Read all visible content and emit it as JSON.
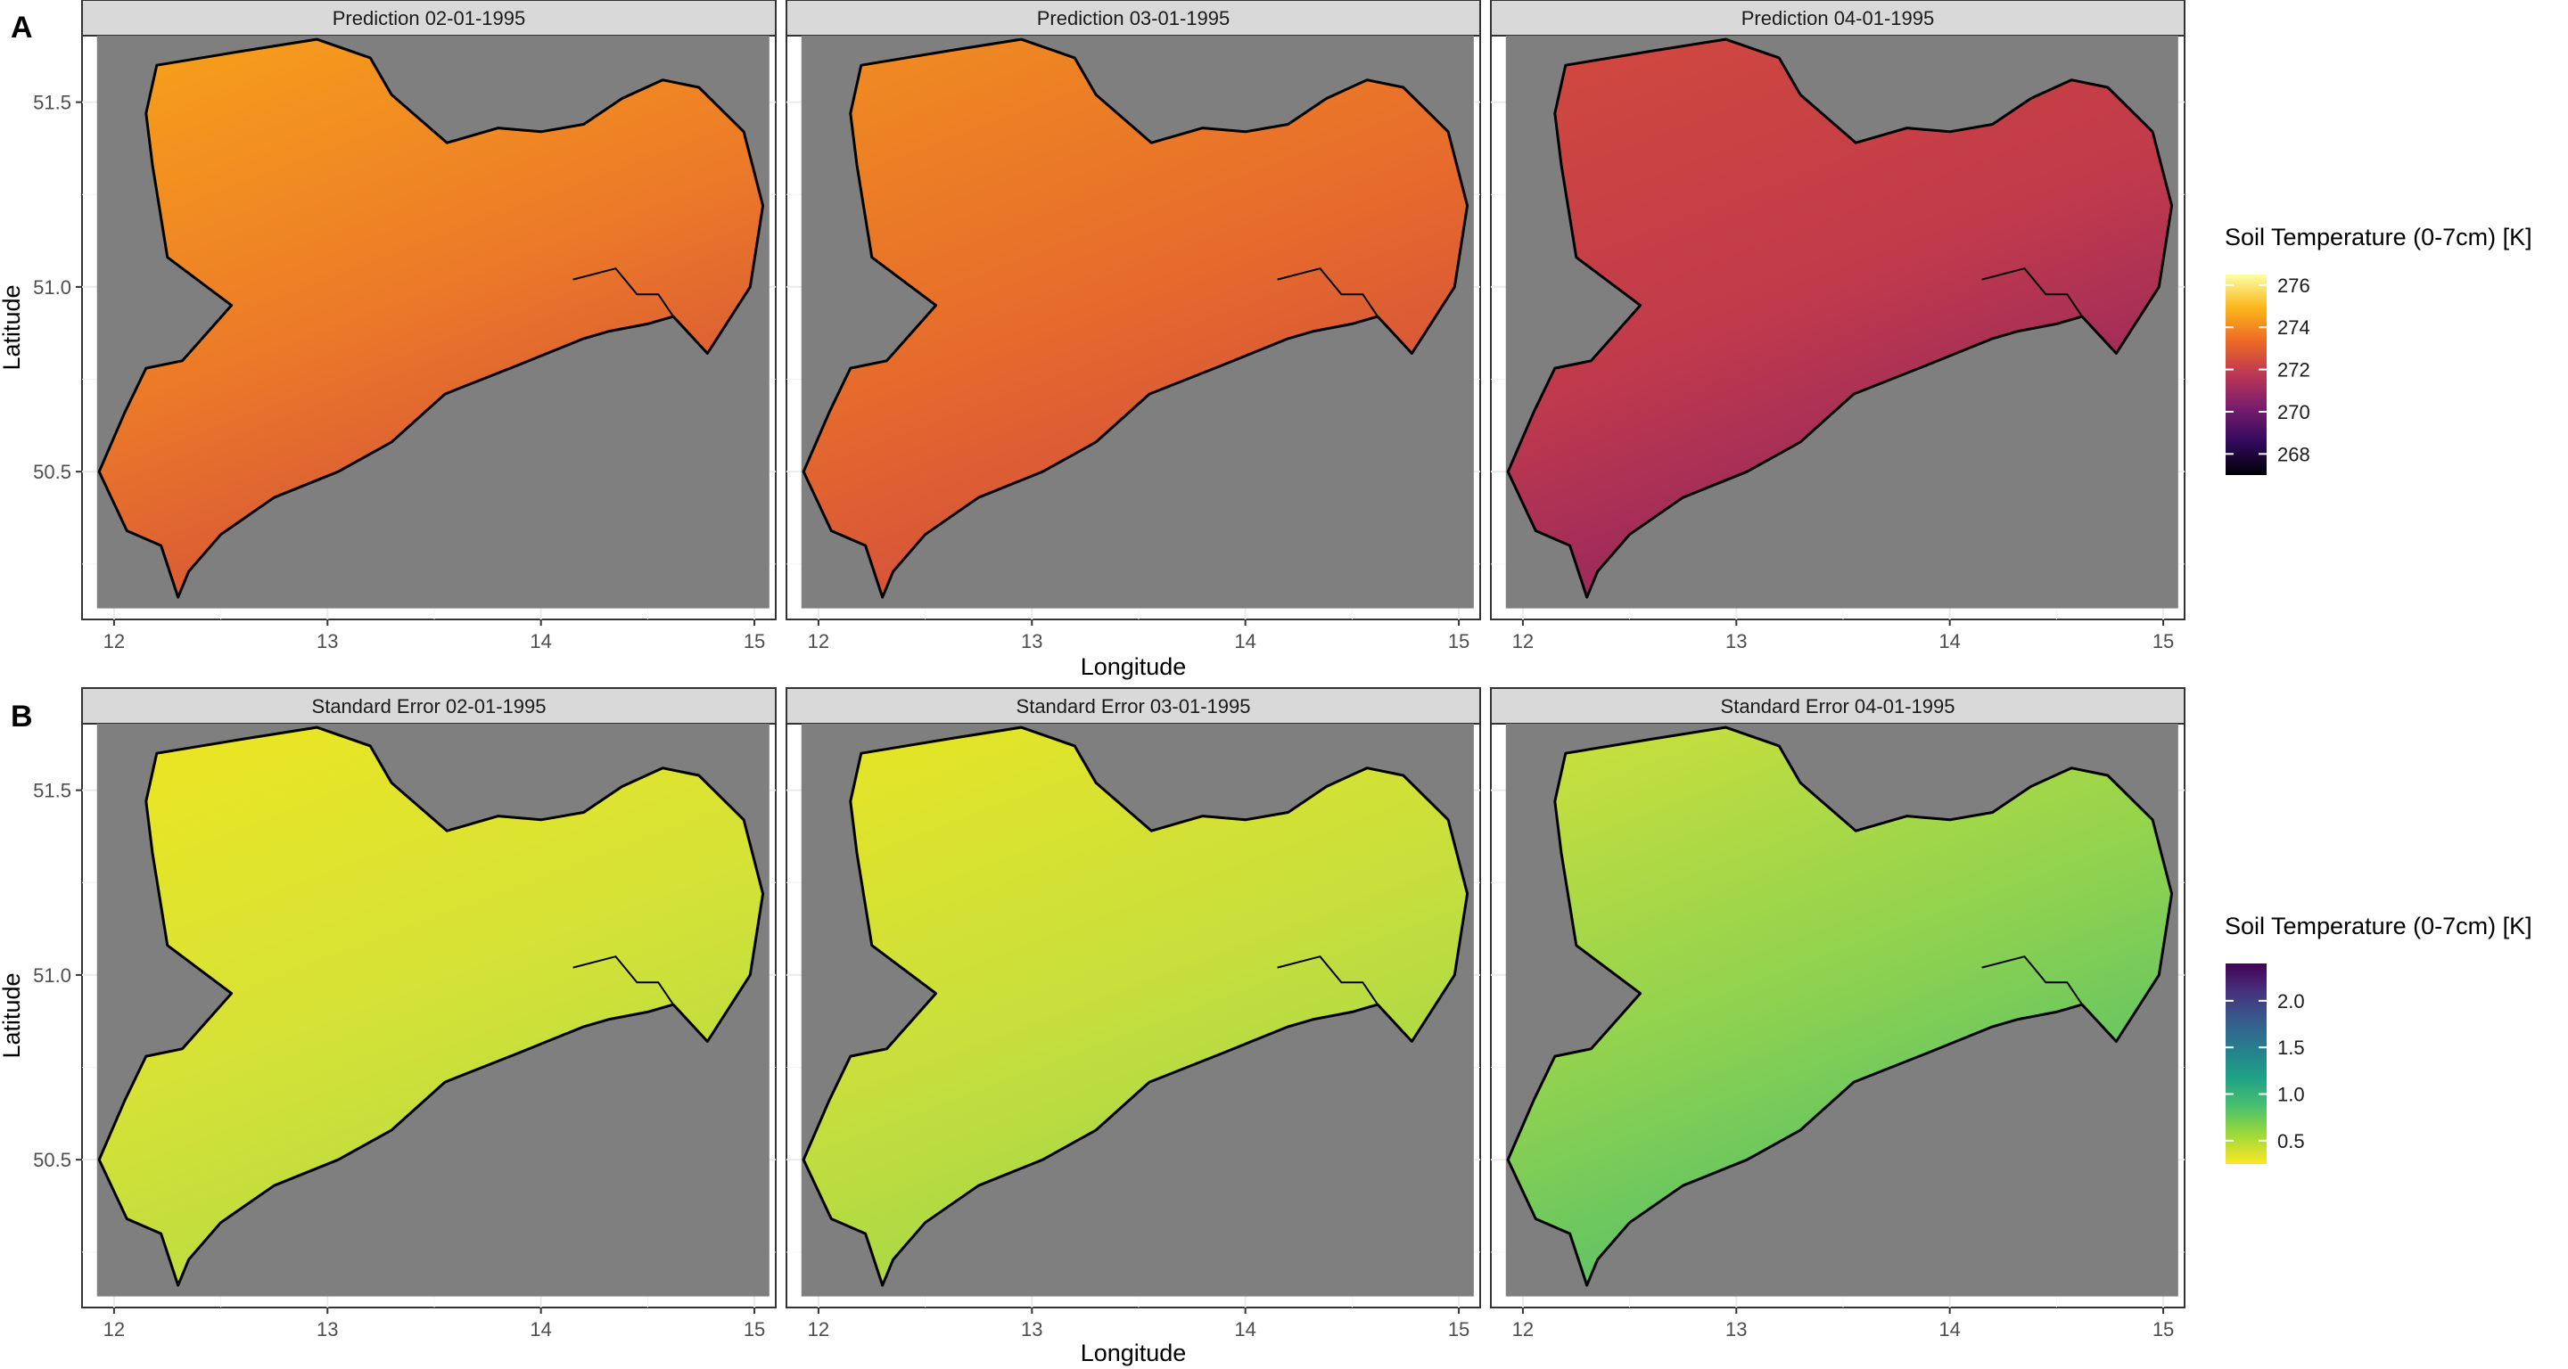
{
  "chart_data": [
    {
      "type": "heatmap",
      "panel_label": "A",
      "facets": [
        "Prediction 02-01-1995",
        "Prediction 03-01-1995",
        "Prediction 04-01-1995"
      ],
      "xlabel": "Longitude",
      "ylabel": "Latitude",
      "xticks": [
        12,
        13,
        14,
        15
      ],
      "yticks": [
        "50.5",
        "51.0",
        "51.5"
      ],
      "xlim": [
        11.85,
        15.1
      ],
      "ylim": [
        50.1,
        51.68
      ],
      "grid": true,
      "legend": {
        "title": "Soil Temperature (0-7cm) [K]",
        "position": "right",
        "palette": "inferno",
        "range": [
          267,
          276.5
        ],
        "breaks": [
          276,
          274,
          272,
          270,
          268
        ],
        "colors": [
          "#000004",
          "#320a5e",
          "#781c6d",
          "#bc3754",
          "#ed6925",
          "#fbb61a",
          "#fcffa4"
        ]
      },
      "facet_mean_values": [
        273.8,
        273.4,
        272.5
      ],
      "facet_colors": [
        [
          "#f7a21a",
          "#ec7a28",
          "#d4503a"
        ],
        [
          "#f18e20",
          "#e66b2c",
          "#d04c3e"
        ],
        [
          "#d24a3d",
          "#c03a4b",
          "#8e2463"
        ]
      ]
    },
    {
      "type": "heatmap",
      "panel_label": "B",
      "facets": [
        "Standard Error 02-01-1995",
        "Standard Error 03-01-1995",
        "Standard Error 04-01-1995"
      ],
      "xlabel": "Longitude",
      "ylabel": "Latitude",
      "xticks": [
        12,
        13,
        14,
        15
      ],
      "yticks": [
        "50.5",
        "51.0",
        "51.5"
      ],
      "xlim": [
        11.85,
        15.1
      ],
      "ylim": [
        50.1,
        51.68
      ],
      "grid": true,
      "legend": {
        "title": "Soil Temperature (0-7cm) [K]",
        "position": "right",
        "palette": "viridis (reversed)",
        "range": [
          0.25,
          2.4
        ],
        "breaks": [
          "2.0",
          "1.5",
          "1.0",
          "0.5"
        ],
        "colors": [
          "#fde725",
          "#a0da39",
          "#4ac16d",
          "#1fa187",
          "#277f8e",
          "#365c8d",
          "#46327e",
          "#440154"
        ]
      },
      "facet_mean_values": [
        0.35,
        0.4,
        0.55
      ],
      "facet_colors": [
        [
          "#ede621",
          "#d6e236",
          "#b6db42"
        ],
        [
          "#e8e524",
          "#c9df3c",
          "#9fd649"
        ],
        [
          "#cfe13a",
          "#8fd24f",
          "#4fbf6c"
        ]
      ]
    }
  ],
  "panel_background": "#7f7f7f",
  "strip_fill": "#d9d9d9"
}
